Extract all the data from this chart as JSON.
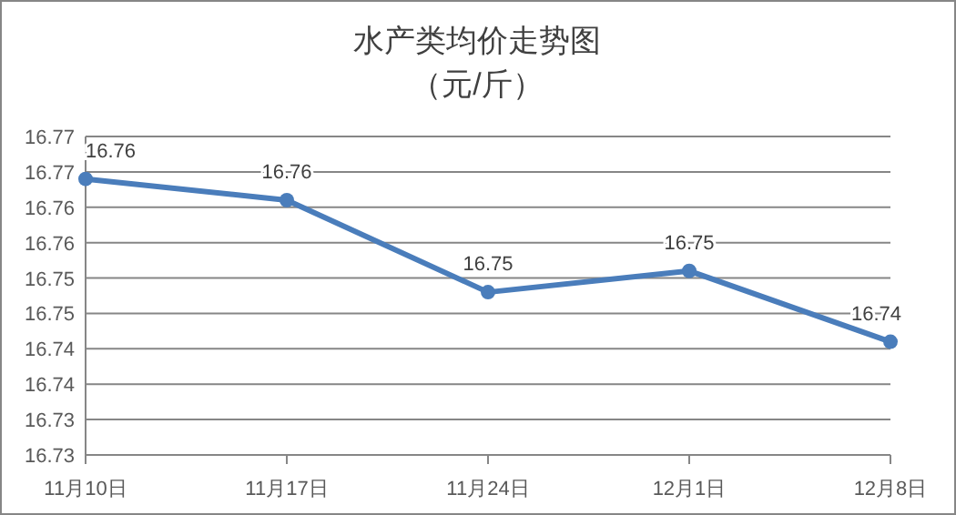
{
  "chart_data": {
    "type": "line",
    "title": "水产类均价走势图",
    "subtitle": "（元/斤）",
    "categories": [
      "11月10日",
      "11月17日",
      "11月24日",
      "12月1日",
      "12月8日"
    ],
    "series": [
      {
        "color": "#4a7dbb",
        "values": [
          16.764,
          16.761,
          16.748,
          16.751,
          16.741
        ],
        "value_labels": [
          "16.76",
          "16.76",
          "16.75",
          "16.75",
          "16.74"
        ]
      }
    ],
    "ylim": [
      16.725,
      16.77
    ],
    "yticks": [
      {
        "value": 16.725,
        "label": "16.73"
      },
      {
        "value": 16.73,
        "label": "16.73"
      },
      {
        "value": 16.735,
        "label": "16.74"
      },
      {
        "value": 16.74,
        "label": "16.74"
      },
      {
        "value": 16.745,
        "label": "16.75"
      },
      {
        "value": 16.75,
        "label": "16.75"
      },
      {
        "value": 16.755,
        "label": "16.76"
      },
      {
        "value": 16.76,
        "label": "16.76"
      },
      {
        "value": 16.765,
        "label": "16.77"
      },
      {
        "value": 16.77,
        "label": "16.77"
      }
    ],
    "grid": "y",
    "marker": "circle",
    "line_style": "solid"
  }
}
